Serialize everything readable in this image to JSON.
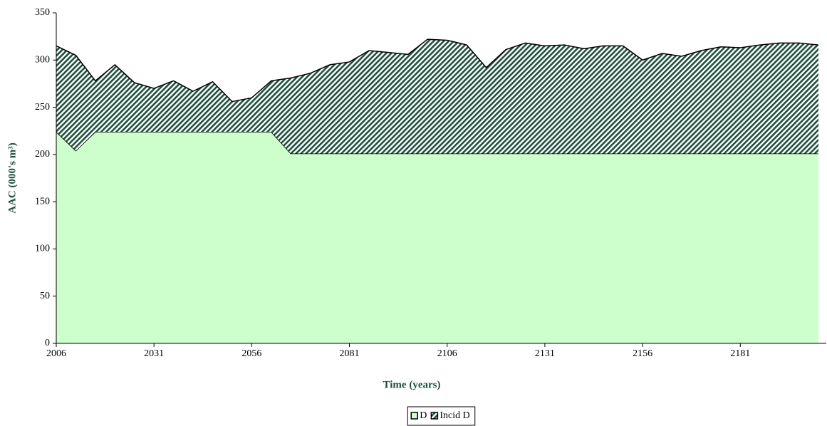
{
  "chart_data": {
    "type": "stacked_area",
    "x_label": "Time (years)",
    "y_label": "AAC (000's m³)",
    "x": [
      2006,
      2011,
      2016,
      2021,
      2026,
      2031,
      2036,
      2041,
      2046,
      2051,
      2056,
      2061,
      2066,
      2071,
      2076,
      2081,
      2086,
      2091,
      2096,
      2101,
      2106,
      2111,
      2116,
      2121,
      2126,
      2131,
      2136,
      2141,
      2146,
      2151,
      2156,
      2161,
      2166,
      2171,
      2176,
      2181,
      2186,
      2191,
      2196,
      2201
    ],
    "series": [
      {
        "name": "D",
        "color": "#ccffcc",
        "values": [
          224,
          204,
          224,
          224,
          224,
          224,
          224,
          224,
          224,
          224,
          224,
          224,
          201,
          201,
          201,
          201,
          201,
          201,
          201,
          201,
          201,
          201,
          201,
          201,
          201,
          201,
          201,
          201,
          201,
          201,
          201,
          201,
          201,
          201,
          201,
          201,
          201,
          201,
          201,
          201
        ]
      },
      {
        "name": "Incid D",
        "color": "#1f4f3f",
        "hatch": true,
        "values": [
          91,
          101,
          54,
          71,
          52,
          46,
          54,
          43,
          53,
          32,
          36,
          54,
          80,
          85,
          94,
          97,
          109,
          107,
          105,
          121,
          120,
          115,
          91,
          110,
          117,
          114,
          115,
          111,
          114,
          114,
          99,
          106,
          103,
          109,
          113,
          112,
          115,
          117,
          117,
          115
        ]
      }
    ],
    "xlim": [
      2006,
      2203
    ],
    "xticks": [
      2006,
      2031,
      2056,
      2081,
      2106,
      2131,
      2156,
      2181
    ],
    "ylim": [
      0,
      350
    ],
    "yticks": [
      0,
      50,
      100,
      150,
      200,
      250,
      300,
      350
    ],
    "legend": "bottom"
  }
}
